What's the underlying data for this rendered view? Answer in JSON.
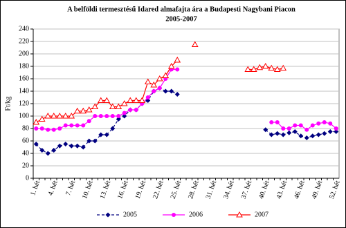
{
  "chart_data": {
    "type": "line",
    "title": "A belföldi termesztésű Idared almafajta ára a Budapesti Nagybani Piacon",
    "subtitle": "2005-2007",
    "y_label": "Ft/kg",
    "categories": [
      "1. hét",
      null,
      null,
      "4. hét",
      null,
      null,
      "7. hét",
      null,
      null,
      "10. hét",
      null,
      null,
      "13. hét",
      null,
      null,
      "16. hét",
      null,
      null,
      "19. hét",
      null,
      null,
      "22. hét",
      null,
      null,
      "25. hét",
      null,
      null,
      "28. hét",
      null,
      null,
      "31. hét",
      null,
      null,
      "34. hét",
      null,
      null,
      "37. hét",
      null,
      null,
      "40. hét",
      null,
      null,
      "43. hét",
      null,
      null,
      "46. hét",
      null,
      null,
      "49. hét",
      null,
      null,
      "52. hét"
    ],
    "series": [
      {
        "name": "2005",
        "color": "#000080",
        "dashed": true,
        "marker": "diamond",
        "values": [
          55,
          45,
          40,
          45,
          52,
          55,
          52,
          52,
          50,
          60,
          60,
          70,
          70,
          80,
          95,
          100,
          110,
          110,
          120,
          125,
          140,
          145,
          140,
          140,
          135,
          null,
          null,
          null,
          null,
          null,
          null,
          null,
          null,
          null,
          null,
          null,
          null,
          null,
          null,
          78,
          70,
          72,
          70,
          73,
          75,
          68,
          65,
          68,
          70,
          72,
          75,
          75
        ]
      },
      {
        "name": "2006",
        "color": "#ff00ff",
        "dashed": false,
        "marker": "circle",
        "values": [
          80,
          80,
          78,
          78,
          80,
          85,
          85,
          85,
          85,
          92,
          100,
          100,
          100,
          100,
          100,
          105,
          110,
          110,
          120,
          130,
          140,
          145,
          160,
          175,
          175,
          null,
          null,
          null,
          null,
          null,
          null,
          null,
          null,
          null,
          null,
          null,
          null,
          null,
          null,
          null,
          90,
          90,
          80,
          80,
          85,
          85,
          78,
          85,
          88,
          90,
          88,
          80
        ]
      },
      {
        "name": "2007",
        "color": "#ff0000",
        "dashed": false,
        "marker": "triangle",
        "values": [
          90,
          95,
          100,
          100,
          100,
          100,
          100,
          108,
          108,
          110,
          115,
          125,
          125,
          115,
          115,
          120,
          125,
          125,
          125,
          155,
          150,
          160,
          165,
          180,
          190,
          null,
          null,
          215,
          null,
          null,
          null,
          null,
          null,
          null,
          null,
          null,
          175,
          175,
          178,
          180,
          177,
          175,
          177,
          null,
          null,
          null,
          null,
          null,
          null,
          null,
          null,
          null
        ]
      }
    ],
    "ylim": [
      0,
      240
    ],
    "yticks": [
      0,
      20,
      40,
      60,
      80,
      100,
      120,
      140,
      160,
      180,
      200,
      220,
      240
    ],
    "grid": true
  }
}
